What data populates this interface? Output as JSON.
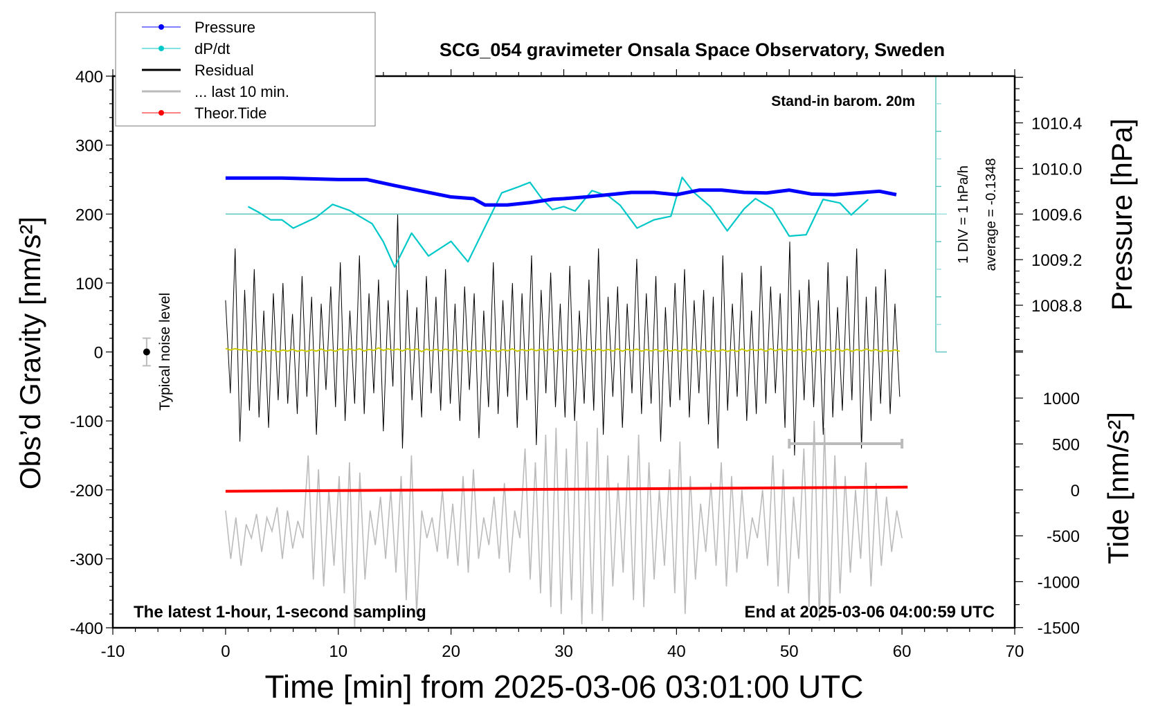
{
  "chart_data": {
    "type": "line",
    "title": "SCG_054 gravimeter Onsala Space Observatory, Sweden",
    "xlabel": "Time [min] from 2025-03-06 03:01:00 UTC",
    "ylabel": "Obs’d Gravity [nm/s²]",
    "ylabel_right_top": "Pressure [hPa]",
    "ylabel_right_bottom": "Tide [nm/s²]",
    "xlim": [
      -10,
      70
    ],
    "ylim": [
      -400,
      400
    ],
    "x_ticks": [
      "-10",
      "0",
      "10",
      "20",
      "30",
      "40",
      "50",
      "60",
      "70"
    ],
    "y_ticks": [
      "400",
      "300",
      "200",
      "100",
      "0",
      "-100",
      "-200",
      "-300",
      "-400"
    ],
    "pressure_ticks": [
      "1010.4",
      "1010.0",
      "1009.6",
      "1009.2",
      "1008.8"
    ],
    "tide_ticks": [
      "1000",
      "500",
      "0",
      "-500",
      "-1000",
      "-1500"
    ],
    "annotations": {
      "barometer": "Stand-in barom. 20m",
      "div_label": "1 DIV = 1 hPa/h",
      "average_label": "average = -0.1348",
      "sampling": "The latest 1-hour, 1-second sampling",
      "end_time": "End at 2025-03-06 04:00:59 UTC",
      "noise_label": "Typical noise level"
    },
    "legend": [
      {
        "label": "Pressure",
        "color": "#0000ff"
      },
      {
        "label": "dP/dt",
        "color": "#00c8c8"
      },
      {
        "label": "Residual",
        "color": "#000000"
      },
      {
        "label": "... last 10 min.",
        "color": "#bbbbbb"
      },
      {
        "label": "Theor.Tide",
        "color": "#ff0000"
      }
    ],
    "legend_position": "top-left",
    "noise_level": {
      "x": -7,
      "y": 0,
      "err": 20
    },
    "last10_bar": {
      "x": [
        50,
        60
      ],
      "y": -133
    },
    "dpdt_average": -0.1348,
    "pressure": {
      "t": [
        0,
        5,
        10,
        12.5,
        15,
        17,
        20,
        22,
        23,
        25,
        27,
        29,
        30,
        32,
        34,
        36,
        38,
        40,
        42,
        44,
        46,
        48,
        50,
        52,
        54,
        56,
        58,
        59.5
      ],
      "hPa": [
        1009.916,
        1009.916,
        1009.903,
        1009.903,
        1009.85,
        1009.81,
        1009.75,
        1009.735,
        1009.68,
        1009.68,
        1009.7,
        1009.73,
        1009.735,
        1009.75,
        1009.77,
        1009.79,
        1009.79,
        1009.77,
        1009.81,
        1009.81,
        1009.79,
        1009.785,
        1009.81,
        1009.775,
        1009.77,
        1009.785,
        1009.8,
        1009.77
      ]
    },
    "dpdt": {
      "t": [
        2,
        3,
        4,
        5,
        6,
        8,
        9.5,
        11,
        13,
        14,
        15,
        16.5,
        18,
        20,
        21.5,
        23,
        24.5,
        26,
        27,
        28,
        29,
        30,
        31,
        32.5,
        34,
        35,
        36.5,
        38,
        39.5,
        40.5,
        41.5,
        43,
        44.5,
        46,
        47,
        48.5,
        50,
        51.5,
        53,
        54.5,
        55.5,
        57
      ],
      "hPa_per_h": [
        0.27,
        0.05,
        -0.21,
        -0.21,
        -0.51,
        -0.13,
        0.35,
        0.13,
        -0.35,
        -1.01,
        -1.92,
        -0.69,
        -1.52,
        -0.99,
        -1.73,
        -0.48,
        0.77,
        0.99,
        1.15,
        0.59,
        0.16,
        0.27,
        0.11,
        0.85,
        0.64,
        0.32,
        -0.51,
        -0.21,
        -0.08,
        1.33,
        0.8,
        0.27,
        -0.61,
        0.19,
        0.56,
        0.19,
        -0.8,
        -0.75,
        0.53,
        0.4,
        -0.03,
        0.53
      ]
    },
    "theor_tide": {
      "t": [
        0,
        60.5
      ],
      "nm_s2": [
        -15,
        30
      ]
    },
    "residual": [
      75,
      -60,
      150,
      -130,
      90,
      -85,
      120,
      -95,
      60,
      -110,
      85,
      -70,
      100,
      -75,
      55,
      -90,
      110,
      -65,
      80,
      -120,
      70,
      -55,
      95,
      -80,
      130,
      -100,
      60,
      -75,
      140,
      -90,
      85,
      -60,
      105,
      -115,
      75,
      -50,
      200,
      -140,
      90,
      -70,
      65,
      -95,
      110,
      -60,
      80,
      -85,
      120,
      -75,
      70,
      -100,
      95,
      -55,
      85,
      -125,
      60,
      -80,
      130,
      -90,
      75,
      -65,
      100,
      -110,
      85,
      -70,
      140,
      -135,
      90,
      -60,
      115,
      -80,
      70,
      -95,
      125,
      -100,
      60,
      -75,
      105,
      -85,
      150,
      -120,
      80,
      -65,
      95,
      -110,
      70,
      -60,
      135,
      -90,
      85,
      -75,
      110,
      -130,
      65,
      -80,
      100,
      -70,
      120,
      -95,
      75,
      -60,
      90,
      -105,
      80,
      -140,
      140,
      -85,
      70,
      -65,
      115,
      -100,
      60,
      -90,
      125,
      -75,
      95,
      -60,
      85,
      -110,
      160,
      -150,
      90,
      -70,
      105,
      -80,
      75,
      -120,
      130,
      -95,
      65,
      -85,
      110,
      -70,
      150,
      -140,
      80,
      -100,
      95,
      -75,
      120,
      -90,
      70,
      -65
    ],
    "last10": [
      -230,
      -300,
      -240,
      -310,
      -250,
      -270,
      -235,
      -290,
      -240,
      -260,
      -225,
      -300,
      -230,
      -285,
      -245,
      -270,
      -150,
      -330,
      -170,
      -340,
      -200,
      -310,
      -180,
      -350,
      -160,
      -400,
      -175,
      -330,
      -230,
      -280,
      -210,
      -300,
      -200,
      -320,
      -180,
      -360,
      -150,
      -380,
      -230,
      -270,
      -240,
      -290,
      -200,
      -300,
      -220,
      -310,
      -180,
      -320,
      -170,
      -300,
      -240,
      -280,
      -210,
      -300,
      -190,
      -320,
      -230,
      -270,
      -140,
      -330,
      -160,
      -350,
      -120,
      -370,
      -110,
      -380,
      -140,
      -360,
      -100,
      -395,
      -130,
      -380,
      -110,
      -390,
      -150,
      -340,
      -190,
      -320,
      -150,
      -360,
      -120,
      -370,
      -160,
      -330,
      -200,
      -310,
      -170,
      -350,
      -130,
      -380,
      -180,
      -330,
      -220,
      -290,
      -190,
      -310,
      -160,
      -340,
      -180,
      -320,
      -200,
      -300,
      -240,
      -270,
      -200,
      -310,
      -150,
      -340,
      -170,
      -350,
      -210,
      -300,
      -140,
      -370,
      -100,
      -390,
      -110,
      -380,
      -150,
      -350,
      -180,
      -320,
      -200,
      -300,
      -160,
      -340,
      -190,
      -310,
      -210,
      -290,
      -230,
      -270
    ]
  }
}
